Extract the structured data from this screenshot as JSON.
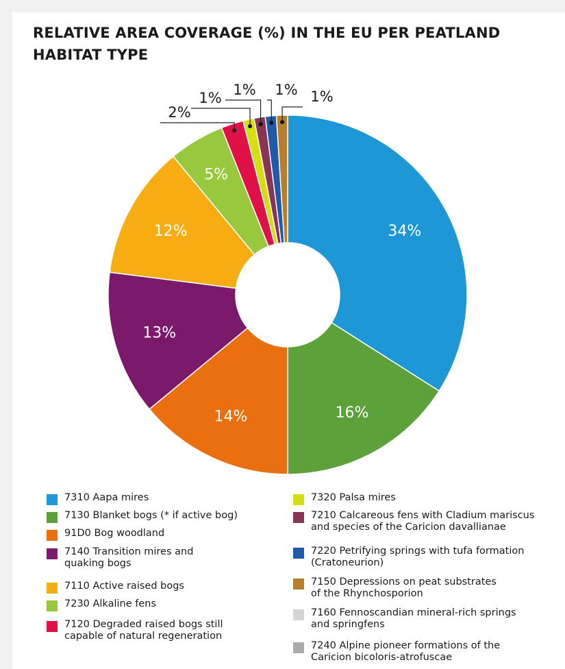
{
  "chart_data": {
    "type": "pie",
    "title": "RELATIVE AREA COVERAGE (%) IN THE EU PER PEATLAND HABITAT TYPE",
    "unit": "%",
    "slices": [
      {
        "label": "7310 Aapa mires",
        "value": 34,
        "display": "34%",
        "color": "#1e97d6"
      },
      {
        "label": "7130 Blanket bogs (* if active bog)",
        "value": 16,
        "display": "16%",
        "color": "#5ca13a"
      },
      {
        "label": "91D0 Bog woodland",
        "value": 14,
        "display": "14%",
        "color": "#ea6f0e"
      },
      {
        "label": "7140 Transition mires and quaking bogs",
        "value": 13,
        "display": "13%",
        "color": "#7b1a6b"
      },
      {
        "label": "7110 Active raised bogs",
        "value": 12,
        "display": "12%",
        "color": "#f6ad12"
      },
      {
        "label": "7230 Alkaline fens",
        "value": 5,
        "display": "5%",
        "color": "#98c83d"
      },
      {
        "label": "7120 Degraded raised bogs still capable of natural regeneration",
        "value": 2,
        "display": "2%",
        "color": "#df1147"
      },
      {
        "label": "7320 Palsa mires",
        "value": 1,
        "display": "1%",
        "color": "#d4de10"
      },
      {
        "label": "7210 Calcareous fens with Cladium mariscus and species of the Caricion davallianae",
        "value": 1,
        "display": "1%",
        "color": "#8a3456"
      },
      {
        "label": "7220 Petrifying springs with tufa formation (Cratoneurion)",
        "value": 1,
        "display": "1%",
        "color": "#1f5ba8"
      },
      {
        "label": "7150 Depressions on peat substrates of the Rhynchosporion",
        "value": 1,
        "display": "1%",
        "color": "#b77f2b"
      }
    ]
  },
  "legend": {
    "left": [
      {
        "text": "7310 Aapa mires",
        "color": "#1e97d6"
      },
      {
        "text": "7130 Blanket bogs (* if active bog)",
        "color": "#5ca13a"
      },
      {
        "text": "91D0 Bog woodland",
        "color": "#ea6f0e"
      },
      {
        "text": "7140 Transition mires and\nquaking bogs",
        "color": "#7b1a6b"
      },
      {
        "text": "7110 Active raised bogs",
        "color": "#f6ad12"
      },
      {
        "text": "7230 Alkaline fens",
        "color": "#98c83d"
      },
      {
        "text": "7120 Degraded raised bogs still\ncapable of natural regeneration",
        "color": "#df1147"
      }
    ],
    "right": [
      {
        "text": "7320 Palsa mires",
        "color": "#d4de10"
      },
      {
        "text": "7210 Calcareous fens with Cladium mariscus\nand species of the Caricion davallianae",
        "color": "#8a3456"
      },
      {
        "text": "7220 Petrifying springs with tufa formation\n(Cratoneurion)",
        "color": "#1f5ba8"
      },
      {
        "text": "7150 Depressions on peat substrates\nof the Rhynchosporion",
        "color": "#b77f2b"
      },
      {
        "text": "7160 Fennoscandian mineral-rich springs\nand springfens",
        "color": "#d5d5d5"
      },
      {
        "text": "7240 Alpine pioneer formations of the\nCaricion bicoloris-atrofuscae",
        "color": "#ababab"
      }
    ]
  }
}
